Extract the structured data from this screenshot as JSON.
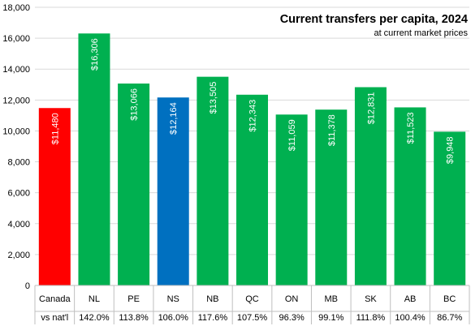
{
  "chart_data": {
    "type": "bar",
    "title": "Current transfers per capita, 2024",
    "subtitle": "at current market prices",
    "categories": [
      "Canada",
      "NL",
      "PE",
      "NS",
      "NB",
      "QC",
      "ON",
      "MB",
      "SK",
      "AB",
      "BC"
    ],
    "values": [
      11480,
      16306,
      13066,
      12164,
      13505,
      12343,
      11059,
      11378,
      12831,
      11523,
      9948
    ],
    "value_labels": [
      "$11,480",
      "$16,306",
      "$13,066",
      "$12,164",
      "$13,505",
      "$12,343",
      "$11,059",
      "$11,378",
      "$12,831",
      "$11,523",
      "$9,948"
    ],
    "bar_colors": [
      "#ff0000",
      "#00b050",
      "#00b050",
      "#0070c0",
      "#00b050",
      "#00b050",
      "#00b050",
      "#00b050",
      "#00b050",
      "#00b050",
      "#00b050"
    ],
    "ylim": [
      0,
      18000
    ],
    "yticks": [
      0,
      2000,
      4000,
      6000,
      8000,
      10000,
      12000,
      14000,
      16000,
      18000
    ],
    "ytick_labels": [
      "0",
      "2,000",
      "4,000",
      "6,000",
      "8,000",
      "10,000",
      "12,000",
      "14,000",
      "16,000",
      "18,000"
    ],
    "grid": true,
    "table_row_label": "vs nat'l",
    "table_row_values": [
      "",
      "142.0%",
      "113.8%",
      "106.0%",
      "117.6%",
      "107.5%",
      "96.3%",
      "99.1%",
      "111.8%",
      "100.4%",
      "86.7%"
    ]
  }
}
